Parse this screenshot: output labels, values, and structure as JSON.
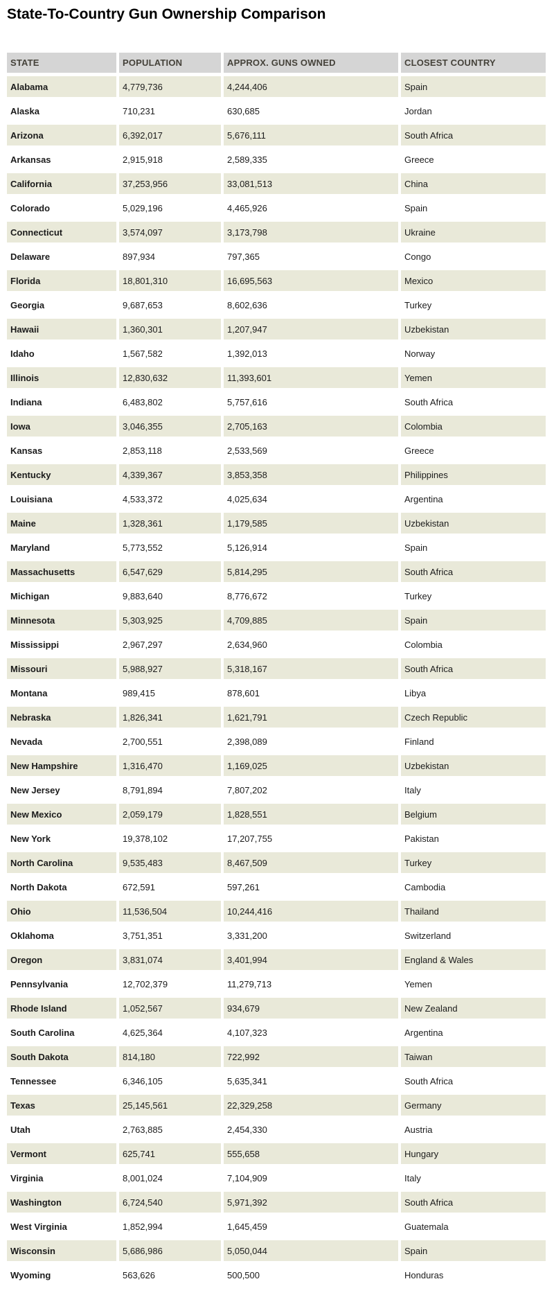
{
  "page": {
    "title": "State-To-Country Gun Ownership Comparison"
  },
  "colors": {
    "title_text": "#000000",
    "header_bg": "#d5d5d5",
    "header_text": "#45423a",
    "row_alt_bg": "#e9e9d9",
    "row_bg": "#ffffff",
    "body_text": "#1b1b1b"
  },
  "chart_data": {
    "type": "table",
    "title": "State-To-Country Gun Ownership Comparison",
    "columns": [
      "STATE",
      "POPULATION",
      "APPROX. GUNS OWNED",
      "CLOSEST COUNTRY"
    ],
    "rows": [
      [
        "Alabama",
        "4,779,736",
        "4,244,406",
        "Spain"
      ],
      [
        "Alaska",
        "710,231",
        "630,685",
        "Jordan"
      ],
      [
        "Arizona",
        "6,392,017",
        "5,676,111",
        "South Africa"
      ],
      [
        "Arkansas",
        "2,915,918",
        "2,589,335",
        "Greece"
      ],
      [
        "California",
        "37,253,956",
        "33,081,513",
        "China"
      ],
      [
        "Colorado",
        "5,029,196",
        "4,465,926",
        "Spain"
      ],
      [
        "Connecticut",
        "3,574,097",
        "3,173,798",
        "Ukraine"
      ],
      [
        "Delaware",
        "897,934",
        "797,365",
        "Congo"
      ],
      [
        "Florida",
        "18,801,310",
        "16,695,563",
        "Mexico"
      ],
      [
        "Georgia",
        "9,687,653",
        "8,602,636",
        "Turkey"
      ],
      [
        "Hawaii",
        "1,360,301",
        "1,207,947",
        "Uzbekistan"
      ],
      [
        "Idaho",
        "1,567,582",
        "1,392,013",
        "Norway"
      ],
      [
        "Illinois",
        "12,830,632",
        "11,393,601",
        "Yemen"
      ],
      [
        "Indiana",
        "6,483,802",
        "5,757,616",
        "South Africa"
      ],
      [
        "Iowa",
        "3,046,355",
        "2,705,163",
        "Colombia"
      ],
      [
        "Kansas",
        "2,853,118",
        "2,533,569",
        "Greece"
      ],
      [
        "Kentucky",
        "4,339,367",
        "3,853,358",
        "Philippines"
      ],
      [
        "Louisiana",
        "4,533,372",
        "4,025,634",
        "Argentina"
      ],
      [
        "Maine",
        "1,328,361",
        "1,179,585",
        "Uzbekistan"
      ],
      [
        "Maryland",
        "5,773,552",
        "5,126,914",
        "Spain"
      ],
      [
        "Massachusetts",
        "6,547,629",
        "5,814,295",
        "South Africa"
      ],
      [
        "Michigan",
        "9,883,640",
        "8,776,672",
        "Turkey"
      ],
      [
        "Minnesota",
        "5,303,925",
        "4,709,885",
        "Spain"
      ],
      [
        "Mississippi",
        "2,967,297",
        "2,634,960",
        "Colombia"
      ],
      [
        "Missouri",
        "5,988,927",
        "5,318,167",
        "South Africa"
      ],
      [
        "Montana",
        "989,415",
        "878,601",
        "Libya"
      ],
      [
        "Nebraska",
        "1,826,341",
        "1,621,791",
        "Czech Republic"
      ],
      [
        "Nevada",
        "2,700,551",
        "2,398,089",
        "Finland"
      ],
      [
        "New Hampshire",
        "1,316,470",
        "1,169,025",
        "Uzbekistan"
      ],
      [
        "New Jersey",
        "8,791,894",
        "7,807,202",
        "Italy"
      ],
      [
        "New Mexico",
        "2,059,179",
        "1,828,551",
        "Belgium"
      ],
      [
        "New York",
        "19,378,102",
        "17,207,755",
        "Pakistan"
      ],
      [
        "North Carolina",
        "9,535,483",
        "8,467,509",
        "Turkey"
      ],
      [
        "North Dakota",
        "672,591",
        "597,261",
        "Cambodia"
      ],
      [
        "Ohio",
        "11,536,504",
        "10,244,416",
        "Thailand"
      ],
      [
        "Oklahoma",
        "3,751,351",
        "3,331,200",
        "Switzerland"
      ],
      [
        "Oregon",
        "3,831,074",
        "3,401,994",
        "England & Wales"
      ],
      [
        "Pennsylvania",
        "12,702,379",
        "11,279,713",
        "Yemen"
      ],
      [
        "Rhode Island",
        "1,052,567",
        "934,679",
        "New Zealand"
      ],
      [
        "South Carolina",
        "4,625,364",
        "4,107,323",
        "Argentina"
      ],
      [
        "South Dakota",
        "814,180",
        "722,992",
        "Taiwan"
      ],
      [
        "Tennessee",
        "6,346,105",
        "5,635,341",
        "South Africa"
      ],
      [
        "Texas",
        "25,145,561",
        "22,329,258",
        "Germany"
      ],
      [
        "Utah",
        "2,763,885",
        "2,454,330",
        "Austria"
      ],
      [
        "Vermont",
        "625,741",
        "555,658",
        "Hungary"
      ],
      [
        "Virginia",
        "8,001,024",
        "7,104,909",
        "Italy"
      ],
      [
        "Washington",
        "6,724,540",
        "5,971,392",
        "South Africa"
      ],
      [
        "West Virginia",
        "1,852,994",
        "1,645,459",
        "Guatemala"
      ],
      [
        "Wisconsin",
        "5,686,986",
        "5,050,044",
        "Spain"
      ],
      [
        "Wyoming",
        "563,626",
        "500,500",
        "Honduras"
      ]
    ]
  }
}
